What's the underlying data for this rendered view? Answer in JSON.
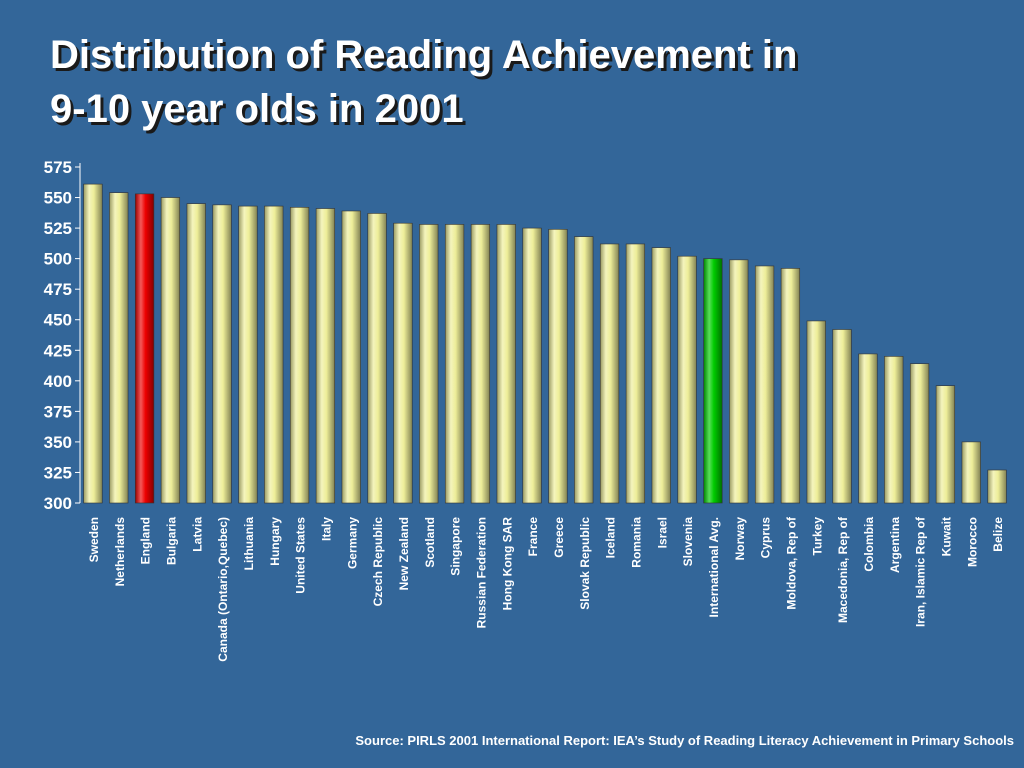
{
  "slide": {
    "title": "Distribution of Reading Achievement in\n9-10 year olds in 2001",
    "source": "Source: PIRLS 2001 International Report: IEA’s Study of Reading Literacy Achievement in Primary Schools"
  },
  "colors": {
    "background": "#336699",
    "bar_default": "#eeee99",
    "bar_england": "#ee0000",
    "bar_international_avg": "#00cc00",
    "text": "#ffffff"
  },
  "chart_data": {
    "type": "bar",
    "title": "",
    "xlabel": "",
    "ylabel": "",
    "ylim": [
      300,
      575
    ],
    "yticks": [
      300,
      325,
      350,
      375,
      400,
      425,
      450,
      475,
      500,
      525,
      550,
      575
    ],
    "grid": false,
    "legend": "none",
    "categories": [
      "Sweden",
      "Netherlands",
      "England",
      "Bulgaria",
      "Latvia",
      "Canada (Ontario,Quebec)",
      "Lithuania",
      "Hungary",
      "United States",
      "Italy",
      "Germany",
      "Czech Republic",
      "New Zealand",
      "Scotland",
      "Singapore",
      "Russian Federation",
      "Hong Kong SAR",
      "France",
      "Greece",
      "Slovak Republic",
      "Iceland",
      "Romania",
      "Israel",
      "Slovenia",
      "International Avg.",
      "Norway",
      "Cyprus",
      "Moldova, Rep of",
      "Turkey",
      "Macedonia, Rep of",
      "Colombia",
      "Argentina",
      "Iran, Islamic Rep of",
      "Kuwait",
      "Morocco",
      "Belize"
    ],
    "values": [
      561,
      554,
      553,
      550,
      545,
      544,
      543,
      543,
      542,
      541,
      539,
      537,
      529,
      528,
      528,
      528,
      528,
      525,
      524,
      518,
      512,
      512,
      509,
      502,
      500,
      499,
      494,
      492,
      449,
      442,
      422,
      420,
      414,
      396,
      350,
      327
    ],
    "highlights": {
      "England": "bar_england",
      "International Avg.": "bar_international_avg"
    }
  }
}
